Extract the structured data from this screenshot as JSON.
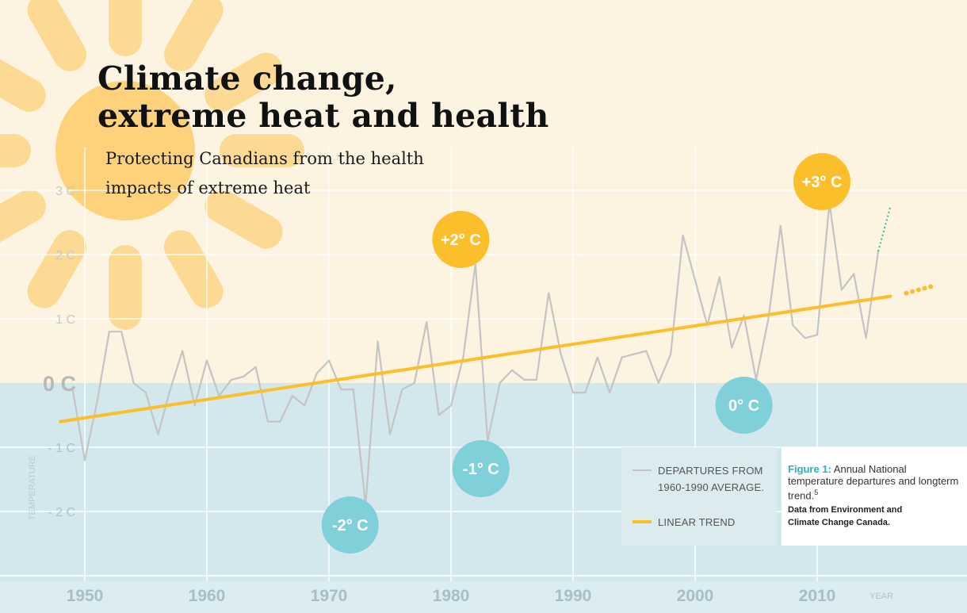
{
  "header": {
    "title_line1": "Climate change,",
    "title_line2": "extreme heat and health",
    "subtitle_line1": "Protecting Canadians from the health",
    "subtitle_line2": "impacts of extreme heat"
  },
  "colors": {
    "background_warm": "#fdf3e1",
    "background_cool": "#d3e8ec",
    "sun": "#fdd27a",
    "trend": "#fbbf2b",
    "departures": "#c4c4c4",
    "cool_bubble": "#7fd0d8",
    "warm_bubble": "#fbbf2b",
    "caption_accent": "#1fb2c2"
  },
  "chart_data": {
    "type": "line",
    "title": "Annual National temperature departures and longterm trend",
    "ylabel": "TEMPERATURE",
    "xlabel": "YEAR",
    "xlim": [
      1948,
      2019
    ],
    "ylim": [
      -3,
      3
    ],
    "x_ticks": [
      1950,
      1960,
      1970,
      1980,
      1990,
      2000,
      2010
    ],
    "x_tick_labels": [
      "1950",
      "1960",
      "1970",
      "1980",
      "1990",
      "2000",
      "2010"
    ],
    "y_ticks": [
      3,
      2,
      1,
      0,
      -1,
      -2
    ],
    "y_tick_labels": [
      "3 C",
      "2 C",
      "1 C",
      "0 C",
      "- 1 C",
      "- 2 C"
    ],
    "series": [
      {
        "name": "DEPARTURES FROM 1960-1990 AVERAGE.",
        "x": [
          1949,
          1950,
          1951,
          1952,
          1953,
          1954,
          1955,
          1956,
          1957,
          1958,
          1959,
          1960,
          1961,
          1962,
          1963,
          1964,
          1965,
          1966,
          1967,
          1968,
          1969,
          1970,
          1971,
          1972,
          1973,
          1974,
          1975,
          1976,
          1977,
          1978,
          1979,
          1980,
          1981,
          1982,
          1983,
          1984,
          1985,
          1986,
          1987,
          1988,
          1989,
          1990,
          1991,
          1992,
          1993,
          1994,
          1995,
          1996,
          1997,
          1998,
          1999,
          2000,
          2001,
          2002,
          2003,
          2004,
          2005,
          2006,
          2007,
          2008,
          2009,
          2010,
          2011,
          2012,
          2013,
          2014,
          2015
        ],
        "values": [
          -0.1,
          -1.2,
          -0.3,
          0.8,
          0.8,
          0.0,
          -0.15,
          -0.8,
          -0.1,
          0.5,
          -0.35,
          0.35,
          -0.2,
          0.05,
          0.1,
          0.25,
          -0.6,
          -0.6,
          -0.2,
          -0.35,
          0.15,
          0.35,
          -0.1,
          -0.1,
          -1.9,
          0.65,
          -0.8,
          -0.1,
          0.0,
          0.95,
          -0.5,
          -0.35,
          0.4,
          1.85,
          -0.9,
          0.0,
          0.2,
          0.05,
          0.05,
          1.4,
          0.45,
          -0.15,
          -0.15,
          0.4,
          -0.15,
          0.4,
          0.45,
          0.5,
          0.0,
          0.45,
          2.3,
          1.6,
          0.9,
          1.65,
          0.55,
          1.05,
          0.05,
          1.0,
          2.45,
          0.9,
          0.7,
          0.75,
          2.8,
          1.45,
          1.7,
          0.7,
          2.05
        ]
      },
      {
        "name": "LINEAR TREND",
        "x": [
          1948,
          2016
        ],
        "values": [
          -0.6,
          1.35
        ],
        "extension": {
          "x": [
            2017,
            2019
          ],
          "values": [
            1.4,
            1.5
          ]
        }
      }
    ],
    "projection": {
      "x": [
        2015,
        2016
      ],
      "values": [
        2.05,
        2.75
      ]
    },
    "annotations": [
      {
        "label": "+2° C",
        "year": 1981,
        "kind": "warm"
      },
      {
        "label": "-1° C",
        "year": 1982,
        "kind": "cool"
      },
      {
        "label": "-2° C",
        "year": 1972,
        "kind": "cool"
      },
      {
        "label": "0° C",
        "year": 2004,
        "kind": "cool"
      },
      {
        "label": "+3° C",
        "year": 2010,
        "kind": "warm"
      }
    ],
    "legend": {
      "departures_line1": "DEPARTURES FROM",
      "departures_line2": "1960-1990 AVERAGE.",
      "trend_label": "LINEAR TREND",
      "placement": "bottom-right"
    }
  },
  "caption": {
    "figure_label": "Figure 1:",
    "text": " Annual National temperature departures and longterm trend.",
    "footnote": "5",
    "source_line1": "Data from Environment and",
    "source_line2": "Climate Change Canada."
  }
}
